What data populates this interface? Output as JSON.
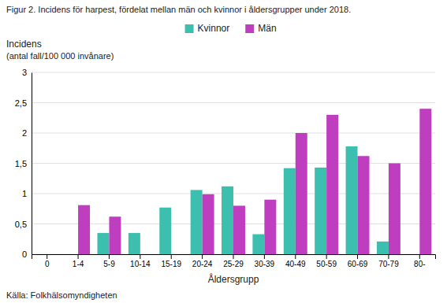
{
  "chart_data": {
    "type": "bar",
    "title": "Figur 2. Incidens för harpest, fördelat mellan män och kvinnor i åldersgrupper under 2018.",
    "ylabel": [
      "Incidens",
      "(antal fall/100 000 invånare)"
    ],
    "xlabel": "Åldersgrupp",
    "annotations": [
      "Källa: Folkhälsomyndigheten"
    ],
    "categories": [
      "0",
      "1-4",
      "5-9",
      "10-14",
      "15-19",
      "20-24",
      "25-29",
      "30-39",
      "40-49",
      "50-59",
      "60-69",
      "70-79",
      "80-"
    ],
    "series": [
      {
        "name": "Kvinnor",
        "color": "#3dbfb0",
        "values": [
          0.0,
          0.0,
          0.35,
          0.35,
          0.77,
          1.06,
          1.12,
          0.33,
          1.42,
          1.43,
          1.78,
          0.21,
          0.0
        ]
      },
      {
        "name": "Män",
        "color": "#bf3dbf",
        "values": [
          0.0,
          0.81,
          0.62,
          0.0,
          0.0,
          0.99,
          0.8,
          0.9,
          2.0,
          2.3,
          1.62,
          1.5,
          2.4
        ]
      }
    ],
    "ylim": [
      0,
      3
    ],
    "yticks": [
      0,
      {
        "value": 0.5,
        "label": "0,5"
      },
      1,
      {
        "value": 1.5,
        "label": "1,5"
      },
      2,
      {
        "value": 2.5,
        "label": "2,5"
      },
      3
    ],
    "grid": true,
    "legend": "top"
  }
}
